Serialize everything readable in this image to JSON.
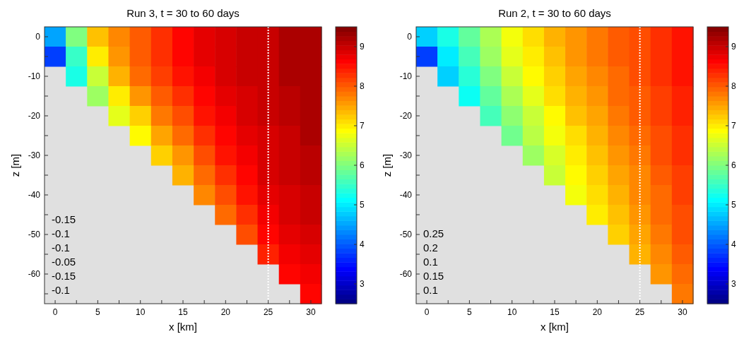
{
  "chart_data": [
    {
      "type": "heatmap",
      "title": "Run 3,  t = 30 to 60 days",
      "xlabel": "x [km]",
      "ylabel": "z [m]",
      "categories": [
        "0",
        null,
        "5",
        null,
        "10",
        null,
        "15",
        null,
        "20",
        null,
        "25",
        null,
        "30"
      ],
      "y_categories": [
        "0",
        null,
        "-10",
        null,
        "-20",
        null,
        "-30",
        null,
        "-40",
        null,
        "-50",
        null,
        "-60",
        null
      ],
      "cells": [
        [
          4.5,
          6.0,
          7.3,
          7.7,
          8.0,
          8.3,
          8.6,
          8.8,
          8.9,
          9.0,
          9.0,
          9.2,
          9.2
        ],
        [
          3.8,
          5.5,
          7.0,
          7.6,
          8.0,
          8.3,
          8.6,
          8.8,
          8.9,
          9.0,
          9.0,
          9.2,
          9.2
        ],
        [
          null,
          5.3,
          6.5,
          7.4,
          7.9,
          8.2,
          8.5,
          8.7,
          8.9,
          9.0,
          9.0,
          9.2,
          9.2
        ],
        [
          null,
          null,
          6.2,
          7.0,
          7.6,
          8.0,
          8.3,
          8.6,
          8.8,
          8.9,
          9.0,
          9.1,
          9.2
        ],
        [
          null,
          null,
          null,
          6.7,
          7.2,
          7.8,
          8.1,
          8.5,
          8.7,
          8.9,
          9.0,
          9.1,
          9.2
        ],
        [
          null,
          null,
          null,
          null,
          6.9,
          7.5,
          7.9,
          8.3,
          8.6,
          8.8,
          8.9,
          9.0,
          9.2
        ],
        [
          null,
          null,
          null,
          null,
          null,
          7.2,
          7.6,
          8.1,
          8.5,
          8.7,
          8.9,
          9.0,
          9.1
        ],
        [
          null,
          null,
          null,
          null,
          null,
          null,
          7.4,
          7.9,
          8.3,
          8.6,
          8.9,
          9.0,
          9.1
        ],
        [
          null,
          null,
          null,
          null,
          null,
          null,
          null,
          7.7,
          8.1,
          8.5,
          8.8,
          8.9,
          9.0
        ],
        [
          null,
          null,
          null,
          null,
          null,
          null,
          null,
          null,
          7.9,
          8.3,
          8.7,
          8.9,
          9.0
        ],
        [
          null,
          null,
          null,
          null,
          null,
          null,
          null,
          null,
          null,
          8.1,
          8.6,
          8.8,
          8.9
        ],
        [
          null,
          null,
          null,
          null,
          null,
          null,
          null,
          null,
          null,
          null,
          8.4,
          8.7,
          8.8
        ],
        [
          null,
          null,
          null,
          null,
          null,
          null,
          null,
          null,
          null,
          null,
          null,
          8.6,
          8.7
        ],
        [
          null,
          null,
          null,
          null,
          null,
          null,
          null,
          null,
          null,
          null,
          null,
          null,
          8.6
        ]
      ],
      "clim": [
        2.5,
        9.5
      ],
      "cticks": [
        3,
        4,
        5,
        6,
        7,
        8,
        9
      ],
      "ref_lines": [
        {
          "axis": "x",
          "value": "25",
          "color": "#ffffff",
          "line_style": "dotted"
        }
      ],
      "annotations": [
        "-0.15",
        "-0.1",
        "-0.1",
        "-0.05",
        "-0.15",
        "-0.1"
      ]
    },
    {
      "type": "heatmap",
      "title": "Run 2,  t = 30 to 60 days",
      "xlabel": "x [km]",
      "ylabel": "z [m]",
      "categories": [
        "0",
        null,
        "5",
        null,
        "10",
        null,
        "15",
        null,
        "20",
        null,
        "25",
        null,
        "30"
      ],
      "y_categories": [
        "0",
        null,
        "-10",
        null,
        "-20",
        null,
        "-30",
        null,
        "-40",
        null,
        "-50",
        null,
        "-60",
        null
      ],
      "cells": [
        [
          4.8,
          5.3,
          5.8,
          6.3,
          6.8,
          7.1,
          7.4,
          7.6,
          7.8,
          8.0,
          8.1,
          8.3,
          8.5
        ],
        [
          3.8,
          5.0,
          5.6,
          6.2,
          6.7,
          7.0,
          7.3,
          7.6,
          7.8,
          8.0,
          8.1,
          8.3,
          8.5
        ],
        [
          null,
          4.8,
          5.4,
          6.0,
          6.5,
          6.9,
          7.2,
          7.5,
          7.7,
          7.9,
          8.1,
          8.3,
          8.5
        ],
        [
          null,
          null,
          5.2,
          5.8,
          6.3,
          6.7,
          7.1,
          7.4,
          7.6,
          7.9,
          8.0,
          8.2,
          8.4
        ],
        [
          null,
          null,
          null,
          5.6,
          6.1,
          6.5,
          6.9,
          7.3,
          7.5,
          7.8,
          8.0,
          8.2,
          8.4
        ],
        [
          null,
          null,
          null,
          null,
          5.9,
          6.4,
          6.8,
          7.1,
          7.4,
          7.7,
          7.9,
          8.1,
          8.3
        ],
        [
          null,
          null,
          null,
          null,
          null,
          6.2,
          6.6,
          7.0,
          7.3,
          7.6,
          7.8,
          8.1,
          8.3
        ],
        [
          null,
          null,
          null,
          null,
          null,
          null,
          6.5,
          6.9,
          7.2,
          7.5,
          7.7,
          8.0,
          8.2
        ],
        [
          null,
          null,
          null,
          null,
          null,
          null,
          null,
          6.8,
          7.1,
          7.4,
          7.7,
          7.9,
          8.2
        ],
        [
          null,
          null,
          null,
          null,
          null,
          null,
          null,
          null,
          7.0,
          7.3,
          7.6,
          7.9,
          8.1
        ],
        [
          null,
          null,
          null,
          null,
          null,
          null,
          null,
          null,
          null,
          7.2,
          7.5,
          7.8,
          8.1
        ],
        [
          null,
          null,
          null,
          null,
          null,
          null,
          null,
          null,
          null,
          null,
          7.4,
          7.7,
          8.0
        ],
        [
          null,
          null,
          null,
          null,
          null,
          null,
          null,
          null,
          null,
          null,
          null,
          7.6,
          7.9
        ],
        [
          null,
          null,
          null,
          null,
          null,
          null,
          null,
          null,
          null,
          null,
          null,
          null,
          7.8
        ]
      ],
      "clim": [
        2.5,
        9.5
      ],
      "cticks": [
        3,
        4,
        5,
        6,
        7,
        8,
        9
      ],
      "ref_lines": [
        {
          "axis": "x",
          "value": "25",
          "color": "#ffffff",
          "line_style": "dotted"
        }
      ],
      "annotations": [
        "0.25",
        "0.2",
        "0.1",
        "0.15",
        "0.1"
      ]
    }
  ]
}
